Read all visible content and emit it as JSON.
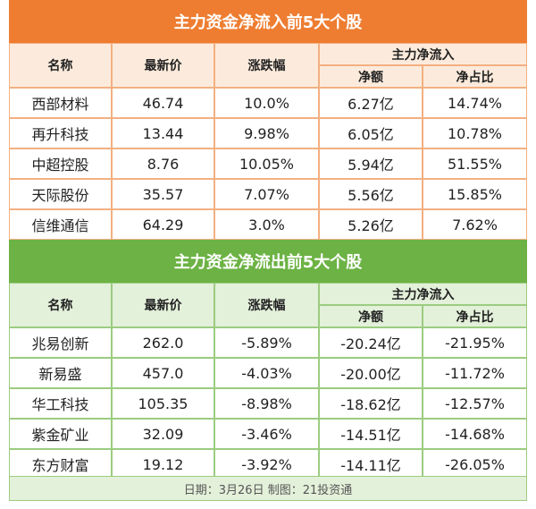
{
  "tables": [
    {
      "title": "主力资金净流入前5大个股",
      "header": {
        "name": "名称",
        "price": "最新价",
        "change": "涨跌幅",
        "group": "主力净流入",
        "amount": "净额",
        "ratio": "净占比"
      },
      "rows": [
        [
          "西部材料",
          "46.74",
          "10.0%",
          "6.27亿",
          "14.74%"
        ],
        [
          "再升科技",
          "13.44",
          "9.98%",
          "6.05亿",
          "10.78%"
        ],
        [
          "中超控股",
          "8.76",
          "10.05%",
          "5.94亿",
          "51.55%"
        ],
        [
          "天际股份",
          "35.57",
          "7.07%",
          "5.56亿",
          "15.85%"
        ],
        [
          "信维通信",
          "64.29",
          "3.0%",
          "5.26亿",
          "7.62%"
        ]
      ]
    },
    {
      "title": "主力资金净流出前5大个股",
      "header": {
        "name": "名称",
        "price": "最新价",
        "change": "涨跌幅",
        "group": "主力净流入",
        "amount": "净额",
        "ratio": "净占比"
      },
      "rows": [
        [
          "兆易创新",
          "262.0",
          "-5.89%",
          "-20.24亿",
          "-21.95%"
        ],
        [
          "新易盛",
          "457.0",
          "-4.03%",
          "-20.00亿",
          "-11.72%"
        ],
        [
          "华工科技",
          "105.35",
          "-8.98%",
          "-18.62亿",
          "-12.57%"
        ],
        [
          "紫金矿业",
          "32.09",
          "-3.46%",
          "-14.51亿",
          "-14.68%"
        ],
        [
          "东方财富",
          "19.12",
          "-3.92%",
          "-14.11亿",
          "-26.05%"
        ]
      ]
    }
  ],
  "footer": "日期：3月26日 制图：21投资通"
}
